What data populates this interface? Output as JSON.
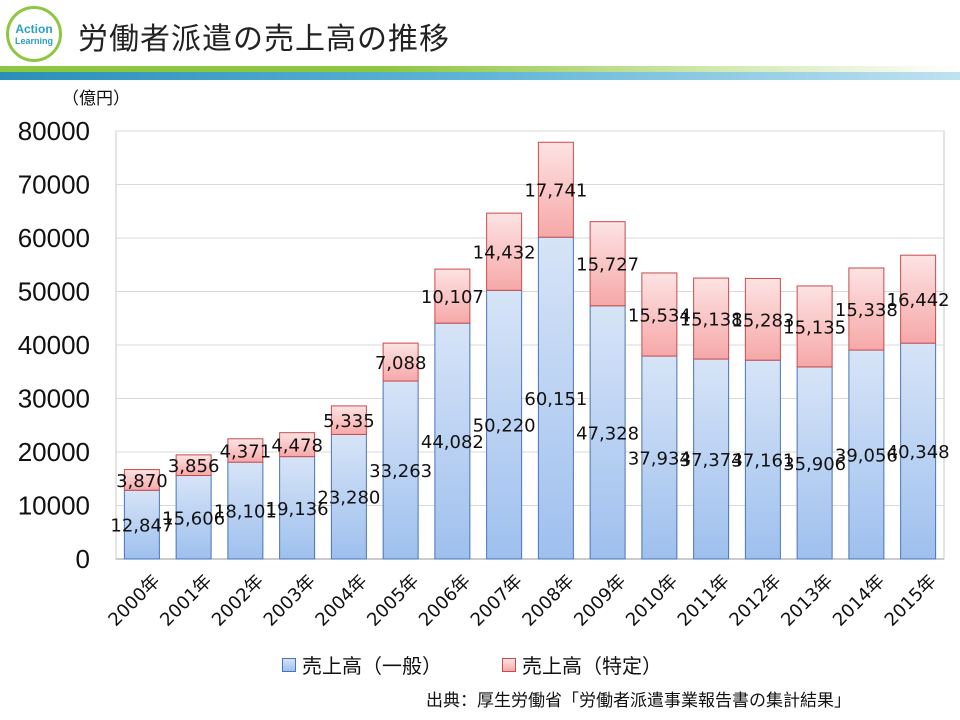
{
  "header": {
    "logo_line1": "Action",
    "logo_line2": "Learning",
    "title": "労働者派遣の売上高の推移"
  },
  "footer": {
    "source": "出典：厚生労働省「労働者派遣事業報告書の集計結果」"
  },
  "colors": {
    "series_general_top": "#d7e4f7",
    "series_general_bottom": "#9ec0ee",
    "series_general_border": "#4a74b8",
    "series_specific_top": "#fde3e3",
    "series_specific_bottom": "#f6a8a8",
    "series_specific_border": "#c94b4b",
    "accent_green": "#8dc63f",
    "accent_blue": "#2a8fb8"
  },
  "chart_data": {
    "type": "bar",
    "stacked": true,
    "title": "",
    "xlabel": "",
    "ylabel": "（億円）",
    "ylim": [
      0,
      80000
    ],
    "yticks": [
      0,
      10000,
      20000,
      30000,
      40000,
      50000,
      60000,
      70000,
      80000
    ],
    "grid": true,
    "legend_position": "bottom",
    "categories": [
      "2000年",
      "2001年",
      "2002年",
      "2003年",
      "2004年",
      "2005年",
      "2006年",
      "2007年",
      "2008年",
      "2009年",
      "2010年",
      "2011年",
      "2012年",
      "2013年",
      "2014年",
      "2015年"
    ],
    "series": [
      {
        "name": "売上高（一般）",
        "values": [
          12847,
          15606,
          18101,
          19136,
          23280,
          33263,
          44082,
          50220,
          60151,
          47328,
          37934,
          37374,
          37161,
          35906,
          39056,
          40348
        ]
      },
      {
        "name": "売上高（特定）",
        "values": [
          3870,
          3856,
          4371,
          4478,
          5335,
          7088,
          10107,
          14432,
          17741,
          15727,
          15534,
          15138,
          15283,
          15135,
          15338,
          16442
        ]
      }
    ]
  }
}
